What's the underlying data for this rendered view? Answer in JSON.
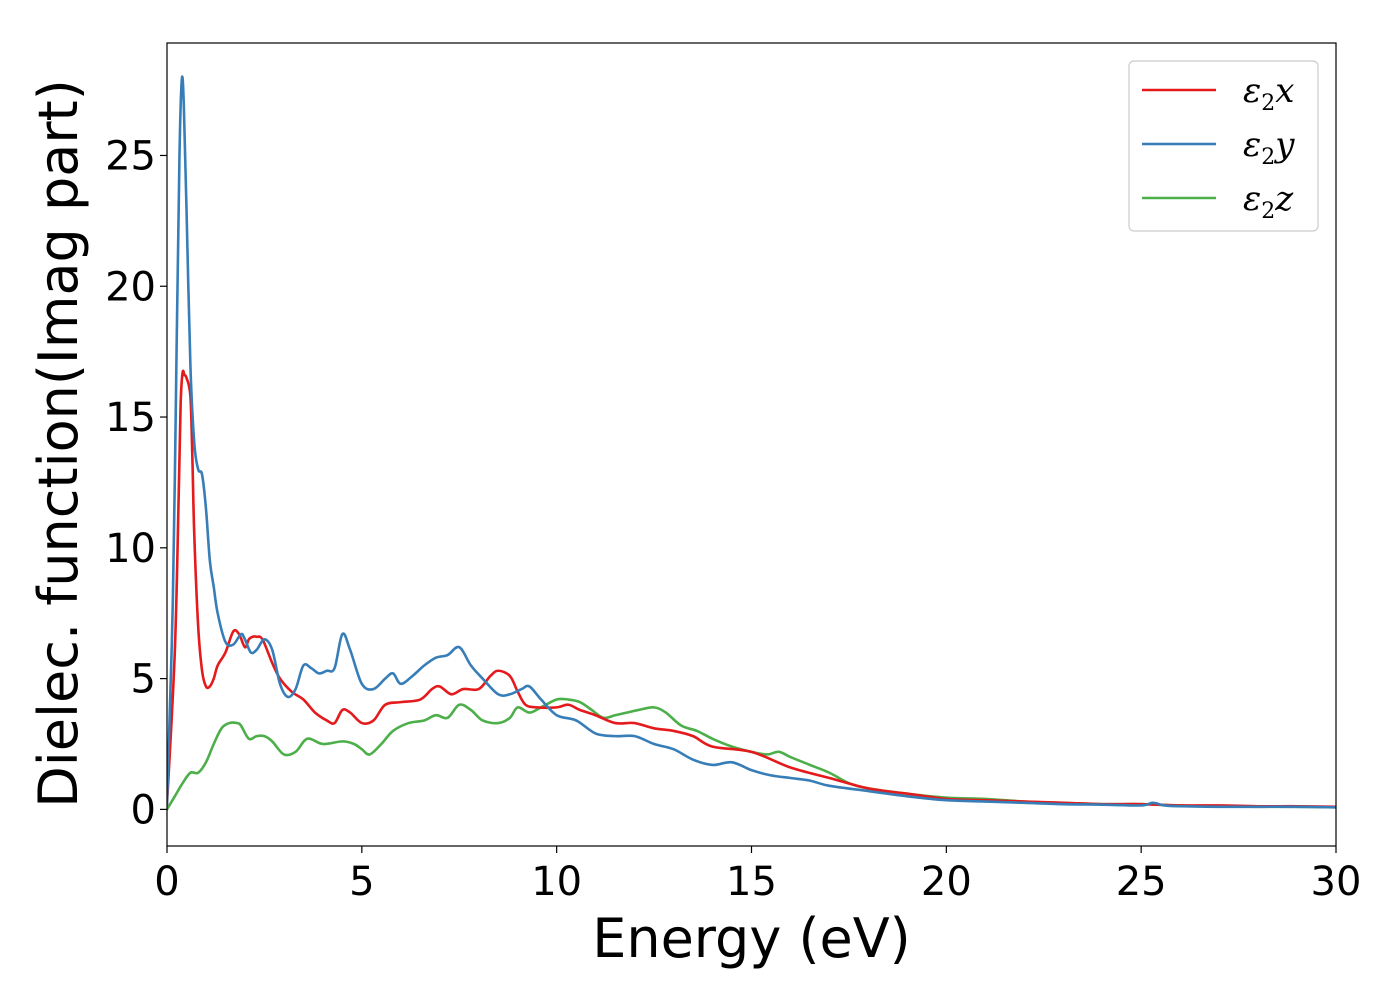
{
  "chart_data": {
    "type": "line",
    "xlabel": "Energy (eV)",
    "ylabel": "Dielec. function(Imag part)",
    "xlim": [
      0,
      30
    ],
    "ylim": [
      -1.4,
      29.3
    ],
    "xticks": [
      0,
      5,
      10,
      15,
      20,
      25,
      30
    ],
    "yticks": [
      0,
      5,
      10,
      15,
      20,
      25
    ],
    "grid": false,
    "legend_position": "top-right",
    "series": [
      {
        "name": "x",
        "color": "#e41a1c",
        "x": [
          0,
          0.2,
          0.3,
          0.35,
          0.4,
          0.45,
          0.5,
          0.6,
          0.65,
          0.7,
          0.8,
          0.9,
          1.0,
          1.1,
          1.2,
          1.3,
          1.5,
          1.7,
          1.85,
          2.0,
          2.1,
          2.2,
          2.3,
          2.45,
          2.7,
          2.9,
          3.2,
          3.5,
          3.8,
          4.1,
          4.3,
          4.5,
          4.7,
          5.0,
          5.3,
          5.6,
          6.0,
          6.5,
          6.8,
          7.0,
          7.3,
          7.6,
          8.0,
          8.3,
          8.5,
          8.8,
          9.0,
          9.2,
          9.5,
          10.0,
          10.3,
          10.6,
          11.0,
          11.5,
          12.0,
          12.5,
          13.0,
          13.5,
          14.0,
          15.0,
          16.0,
          17.0,
          18.0,
          19.0,
          20.0,
          21.0,
          22.0,
          23.0,
          24.0,
          25.0,
          26.0,
          27.0,
          28.0,
          29.0,
          30.0
        ],
        "values": [
          0.2,
          6.0,
          12.0,
          15.5,
          16.7,
          16.6,
          16.5,
          15.8,
          13.5,
          10.5,
          7.0,
          5.3,
          4.7,
          4.7,
          5.0,
          5.5,
          6.0,
          6.8,
          6.7,
          6.2,
          6.5,
          6.6,
          6.6,
          6.5,
          5.6,
          5.0,
          4.5,
          4.2,
          3.7,
          3.4,
          3.3,
          3.8,
          3.7,
          3.3,
          3.4,
          4.0,
          4.1,
          4.2,
          4.6,
          4.7,
          4.4,
          4.6,
          4.6,
          5.1,
          5.3,
          5.1,
          4.5,
          4.0,
          3.9,
          3.9,
          4.0,
          3.8,
          3.6,
          3.3,
          3.3,
          3.1,
          3.0,
          2.8,
          2.4,
          2.2,
          1.6,
          1.2,
          0.8,
          0.6,
          0.4,
          0.35,
          0.3,
          0.25,
          0.2,
          0.2,
          0.15,
          0.15,
          0.12,
          0.12,
          0.1
        ]
      },
      {
        "name": "y",
        "color": "#377eb8",
        "x": [
          0,
          0.15,
          0.25,
          0.32,
          0.38,
          0.43,
          0.5,
          0.6,
          0.7,
          0.8,
          0.9,
          1.0,
          1.1,
          1.2,
          1.3,
          1.5,
          1.7,
          1.9,
          2.0,
          2.15,
          2.3,
          2.5,
          2.7,
          2.9,
          3.1,
          3.3,
          3.5,
          3.7,
          3.9,
          4.1,
          4.3,
          4.5,
          4.7,
          5.0,
          5.3,
          5.6,
          5.8,
          6.0,
          6.3,
          6.6,
          6.9,
          7.2,
          7.5,
          7.8,
          8.1,
          8.5,
          8.8,
          9.1,
          9.3,
          9.6,
          10.0,
          10.5,
          11.0,
          11.5,
          12.0,
          12.5,
          13.0,
          13.5,
          14.0,
          14.5,
          15.0,
          15.5,
          16.0,
          16.5,
          17.0,
          18.0,
          19.0,
          20.0,
          21.0,
          22.0,
          23.0,
          24.0,
          25.0,
          25.3,
          25.6,
          26.0,
          27.0,
          28.0,
          29.0,
          30.0
        ],
        "values": [
          0.2,
          8.0,
          18.0,
          25.0,
          27.9,
          27.0,
          23.0,
          17.0,
          14.0,
          13.0,
          12.8,
          11.5,
          9.5,
          8.5,
          7.5,
          6.4,
          6.3,
          6.7,
          6.5,
          6.0,
          6.1,
          6.5,
          6.1,
          4.8,
          4.3,
          4.6,
          5.5,
          5.4,
          5.2,
          5.3,
          5.4,
          6.7,
          6.1,
          4.8,
          4.6,
          5.0,
          5.2,
          4.8,
          5.1,
          5.5,
          5.8,
          5.9,
          6.2,
          5.5,
          5.0,
          4.4,
          4.4,
          4.6,
          4.7,
          4.2,
          3.6,
          3.4,
          2.9,
          2.8,
          2.8,
          2.5,
          2.3,
          1.9,
          1.7,
          1.8,
          1.5,
          1.3,
          1.2,
          1.1,
          0.9,
          0.7,
          0.5,
          0.35,
          0.3,
          0.25,
          0.2,
          0.18,
          0.15,
          0.25,
          0.15,
          0.12,
          0.1,
          0.1,
          0.1,
          0.08
        ]
      },
      {
        "name": "z",
        "color": "#4daf4a",
        "x": [
          0,
          0.2,
          0.4,
          0.6,
          0.8,
          1.0,
          1.2,
          1.4,
          1.6,
          1.8,
          1.9,
          2.1,
          2.3,
          2.5,
          2.7,
          3.0,
          3.3,
          3.6,
          4.0,
          4.5,
          4.8,
          5.0,
          5.2,
          5.5,
          5.8,
          6.2,
          6.6,
          6.9,
          7.2,
          7.5,
          7.8,
          8.1,
          8.5,
          8.8,
          9.0,
          9.3,
          9.6,
          10.0,
          10.3,
          10.6,
          10.9,
          11.2,
          11.5,
          11.8,
          12.1,
          12.5,
          12.8,
          13.2,
          13.6,
          14.0,
          14.5,
          15.0,
          15.4,
          15.7,
          16.0,
          16.5,
          17.0,
          17.5,
          18.0,
          19.0,
          20.0,
          21.0,
          22.0,
          23.0,
          24.0,
          25.0,
          26.0,
          27.0,
          28.0,
          29.0,
          30.0
        ],
        "values": [
          0.0,
          0.5,
          1.0,
          1.4,
          1.4,
          1.8,
          2.5,
          3.1,
          3.3,
          3.3,
          3.2,
          2.7,
          2.8,
          2.8,
          2.6,
          2.1,
          2.2,
          2.7,
          2.5,
          2.6,
          2.5,
          2.3,
          2.1,
          2.5,
          3.0,
          3.3,
          3.4,
          3.6,
          3.5,
          4.0,
          3.8,
          3.4,
          3.3,
          3.5,
          3.9,
          3.7,
          3.9,
          4.2,
          4.2,
          4.1,
          3.8,
          3.5,
          3.6,
          3.7,
          3.8,
          3.9,
          3.7,
          3.2,
          3.0,
          2.7,
          2.4,
          2.2,
          2.1,
          2.2,
          2.0,
          1.7,
          1.4,
          1.0,
          0.8,
          0.6,
          0.45,
          0.4,
          0.3,
          0.25,
          0.2,
          0.2,
          0.15,
          0.12,
          0.1,
          0.1,
          0.08
        ]
      }
    ]
  }
}
